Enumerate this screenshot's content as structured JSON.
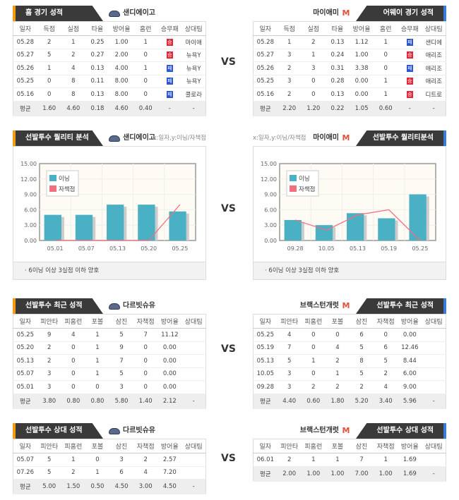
{
  "vs_label": "VS",
  "sections": [
    {
      "type": "table",
      "left": {
        "tab_title": "홈 경기 성적",
        "team": "샌디에이고",
        "logo": "padres-logo",
        "columns": [
          "일자",
          "득점",
          "실점",
          "타율",
          "방어율",
          "홈런",
          "승무패",
          "상대팀"
        ],
        "rows": [
          [
            "05.28",
            "2",
            "1",
            "0.25",
            "1.00",
            "1",
            "승",
            "마이애"
          ],
          [
            "05.27",
            "5",
            "2",
            "0.27",
            "2.00",
            "0",
            "승",
            "뉴욕Y"
          ],
          [
            "05.26",
            "1",
            "4",
            "0.13",
            "4.00",
            "1",
            "패",
            "뉴욕Y"
          ],
          [
            "05.25",
            "0",
            "8",
            "0.11",
            "8.00",
            "0",
            "패",
            "뉴욕Y"
          ],
          [
            "05.16",
            "0",
            "8",
            "0.13",
            "8.00",
            "0",
            "패",
            "콜로라"
          ]
        ],
        "avg": [
          "평균",
          "1.60",
          "4.60",
          "0.18",
          "4.60",
          "0.40",
          "-",
          "-"
        ]
      },
      "right": {
        "tab_title": "어웨이 경기 성적",
        "team": "마이애미",
        "logo": "marlins-logo",
        "columns": [
          "일자",
          "득점",
          "실점",
          "타율",
          "방어율",
          "홈런",
          "승무패",
          "상대팀"
        ],
        "rows": [
          [
            "05.28",
            "1",
            "2",
            "0.13",
            "1.12",
            "1",
            "패",
            "샌디에"
          ],
          [
            "05.27",
            "3",
            "1",
            "0.24",
            "1.00",
            "0",
            "승",
            "애리조"
          ],
          [
            "05.26",
            "2",
            "3",
            "0.31",
            "3.38",
            "0",
            "패",
            "애리조"
          ],
          [
            "05.25",
            "3",
            "0",
            "0.28",
            "0.00",
            "1",
            "승",
            "애리조"
          ],
          [
            "05.16",
            "2",
            "0",
            "0.13",
            "0.00",
            "1",
            "승",
            "디트로"
          ]
        ],
        "avg": [
          "평균",
          "2.20",
          "1.20",
          "0.22",
          "1.05",
          "0.60",
          "-",
          "-"
        ]
      }
    },
    {
      "type": "chart",
      "left": {
        "tab_title": "선발투수 퀄리티 분석",
        "team": "샌디에이고",
        "logo": "padres-logo",
        "axis_note": "x:일자,y:이닝/자책점",
        "note": "6이닝 이상 3실점 이하 양호"
      },
      "right": {
        "tab_title": "선발투수 퀄리티분석",
        "team": "마이애미",
        "logo": "marlins-logo",
        "axis_note": "x:일자,y:이닝/자책점",
        "note": "6이닝 이상 3실점 이하 양호"
      }
    },
    {
      "type": "table",
      "left": {
        "tab_title": "선발투수 최근 성적",
        "team": "다르빗슈유",
        "logo": "padres-logo",
        "columns": [
          "일자",
          "피안타",
          "피홈런",
          "포볼",
          "삼진",
          "자책점",
          "방어율",
          "상대팀"
        ],
        "rows": [
          [
            "05.25",
            "9",
            "4",
            "1",
            "5",
            "7",
            "11.12",
            ""
          ],
          [
            "05.20",
            "2",
            "0",
            "1",
            "9",
            "0",
            "0.00",
            ""
          ],
          [
            "05.13",
            "2",
            "0",
            "1",
            "7",
            "0",
            "0.00",
            ""
          ],
          [
            "05.07",
            "3",
            "0",
            "1",
            "5",
            "0",
            "0.00",
            ""
          ],
          [
            "05.01",
            "3",
            "0",
            "0",
            "3",
            "0",
            "0.00",
            ""
          ]
        ],
        "avg": [
          "평균",
          "3.80",
          "0.80",
          "0.80",
          "5.80",
          "1.40",
          "2.12",
          "-"
        ]
      },
      "right": {
        "tab_title": "선발투수 최근 성적",
        "team": "브랙스턴개럿",
        "logo": "marlins-logo",
        "columns": [
          "일자",
          "피안타",
          "피홈런",
          "포볼",
          "삼진",
          "자책점",
          "방어율",
          "상대팀"
        ],
        "rows": [
          [
            "05.25",
            "4",
            "0",
            "0",
            "6",
            "0",
            "0.00",
            ""
          ],
          [
            "05.19",
            "7",
            "0",
            "4",
            "5",
            "6",
            "12.46",
            ""
          ],
          [
            "05.13",
            "5",
            "1",
            "2",
            "8",
            "5",
            "8.44",
            ""
          ],
          [
            "10.05",
            "3",
            "0",
            "1",
            "5",
            "2",
            "6.00",
            ""
          ],
          [
            "09.28",
            "3",
            "2",
            "2",
            "2",
            "4",
            "9.00",
            ""
          ]
        ],
        "avg": [
          "평균",
          "4.40",
          "0.60",
          "1.80",
          "5.20",
          "3.40",
          "5.96",
          "-"
        ]
      }
    },
    {
      "type": "table",
      "left": {
        "tab_title": "선발투수 상대 성적",
        "team": "다르빗슈유",
        "logo": "padres-logo",
        "columns": [
          "일자",
          "피안타",
          "피홈런",
          "포볼",
          "삼진",
          "자책점",
          "방어율",
          "상대팀"
        ],
        "rows": [
          [
            "05.07",
            "5",
            "1",
            "0",
            "3",
            "2",
            "2.57",
            ""
          ],
          [
            "07.26",
            "5",
            "2",
            "1",
            "6",
            "4",
            "7.20",
            ""
          ]
        ],
        "avg": [
          "평균",
          "5.00",
          "1.50",
          "0.50",
          "4.50",
          "3.00",
          "4.50",
          "-"
        ]
      },
      "right": {
        "tab_title": "선발투수 상대 성적",
        "team": "브랙스턴개럿",
        "logo": "marlins-logo",
        "columns": [
          "일자",
          "피안타",
          "피홈런",
          "포볼",
          "삼진",
          "자책점",
          "방어율",
          "상대팀"
        ],
        "rows": [
          [
            "06.01",
            "2",
            "1",
            "1",
            "7",
            "1",
            "1.69",
            ""
          ]
        ],
        "avg": [
          "평균",
          "2.00",
          "1.00",
          "1.00",
          "7.00",
          "1.00",
          "1.69",
          "-"
        ]
      }
    }
  ],
  "colors": {
    "win": "#e0283a",
    "loss": "#2c55d4",
    "bar": "#4ab0c4",
    "line": "#f07080",
    "home_accent": "#f39c12",
    "away_accent": "#3b7bdb"
  },
  "chart_data": [
    {
      "type": "bar",
      "categories": [
        "05.01",
        "05.07",
        "05.13",
        "05.20",
        "05.25"
      ],
      "series": [
        {
          "name": "이닝",
          "type": "bar",
          "values": [
            5,
            5,
            7,
            7,
            5.67
          ]
        },
        {
          "name": "자책점",
          "type": "line",
          "values": [
            0,
            0,
            0,
            0,
            7
          ]
        }
      ],
      "yticks": [
        "0.00",
        "3.00",
        "6.00",
        "9.00",
        "12.00",
        "15.00"
      ],
      "ylim": [
        0,
        15
      ],
      "legend": "top-left",
      "grid": true
    },
    {
      "type": "bar",
      "categories": [
        "09.28",
        "10.05",
        "05.13",
        "05.19",
        "05.25"
      ],
      "series": [
        {
          "name": "이닝",
          "type": "bar",
          "values": [
            4,
            3,
            5.33,
            4.33,
            9
          ]
        },
        {
          "name": "자책점",
          "type": "line",
          "values": [
            4,
            2,
            5,
            6,
            0
          ]
        }
      ],
      "yticks": [
        "0.00",
        "3.00",
        "6.00",
        "9.00",
        "12.00",
        "15.00"
      ],
      "ylim": [
        0,
        15
      ],
      "legend": "top-left",
      "grid": true
    }
  ]
}
